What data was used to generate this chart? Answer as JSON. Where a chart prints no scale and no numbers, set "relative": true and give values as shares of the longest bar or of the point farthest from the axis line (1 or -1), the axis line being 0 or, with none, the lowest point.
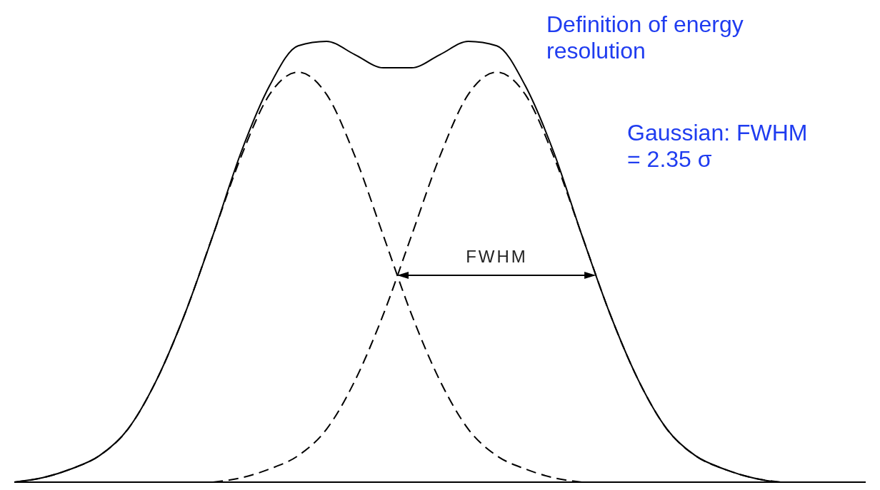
{
  "chart_data": {
    "type": "line",
    "title": "Definition of energy resolution",
    "annotations": [
      "Gaussian: FWHM = 2.35 σ",
      "FWHM"
    ],
    "relative": true,
    "marker": "none",
    "categories": [
      null,
      null,
      null,
      null,
      null,
      null,
      null,
      null,
      null,
      null,
      null,
      null,
      null,
      null,
      null,
      null,
      null,
      null,
      null,
      null,
      null,
      null,
      null,
      null,
      null,
      null,
      null,
      null,
      null,
      null,
      null
    ],
    "series": [
      {
        "color": "#000000",
        "line_style": "solid",
        "values": [
          0,
          0.01,
          0.03,
          0.06,
          0.12,
          0.23,
          0.38,
          0.56,
          0.75,
          0.9,
          0.99,
          1,
          0.97,
          0.94,
          0.94,
          0.97,
          1,
          0.99,
          0.9,
          0.75,
          0.56,
          0.38,
          0.23,
          0.12,
          0.06,
          0.03,
          0.01,
          0,
          0,
          0,
          0
        ]
      },
      {
        "color": "#000000",
        "line_style": "dashed",
        "values": [
          0,
          0.01,
          0.03,
          0.06,
          0.12,
          0.23,
          0.38,
          0.56,
          0.74,
          0.88,
          0.93,
          0.88,
          0.74,
          0.56,
          0.38,
          0.23,
          0.12,
          0.06,
          0.03,
          0.01,
          0,
          null,
          null,
          null,
          null,
          null,
          null,
          null,
          null,
          null,
          null
        ]
      },
      {
        "color": "#000000",
        "line_style": "dashed",
        "values": [
          null,
          null,
          null,
          null,
          null,
          null,
          null,
          0,
          0.01,
          0.03,
          0.06,
          0.12,
          0.23,
          0.38,
          0.56,
          0.74,
          0.88,
          0.93,
          0.88,
          0.74,
          0.56,
          0.38,
          0.23,
          0.12,
          0.06,
          0.03,
          0.01,
          0,
          null,
          null,
          null
        ]
      }
    ]
  }
}
